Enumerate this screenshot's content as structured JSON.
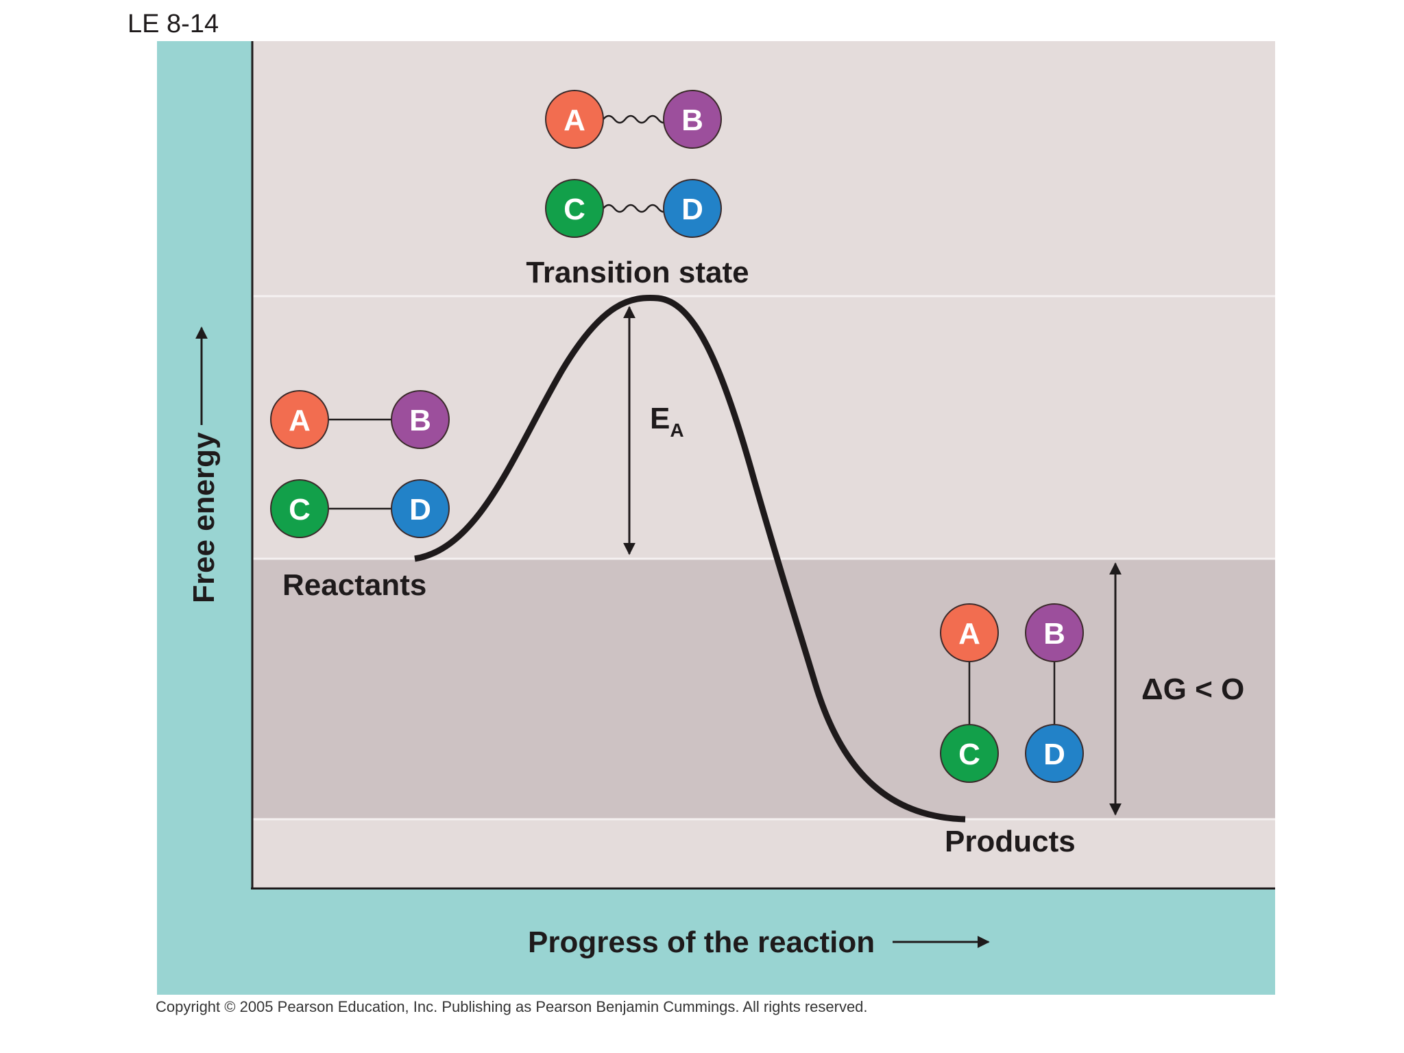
{
  "figure": {
    "label": "LE 8-14",
    "y_axis_label": "Free energy",
    "x_axis_label": "Progress of the reaction",
    "copyright": "Copyright © 2005 Pearson Education, Inc. Publishing as Pearson Benjamin Cummings. All rights reserved."
  },
  "labels": {
    "transition_state": "Transition state",
    "reactants": "Reactants",
    "products": "Products",
    "activation_energy": "E",
    "activation_energy_sub": "A",
    "delta_g": "ΔG < O"
  },
  "atoms": {
    "a": "A",
    "b": "B",
    "c": "C",
    "d": "D"
  },
  "colors": {
    "teal_border": "#99d4d2",
    "upper_band": "#e4dcdb",
    "lower_band": "#cdc2c3",
    "atom_a": "#f26d50",
    "atom_b": "#9c4f9c",
    "atom_c": "#12a04a",
    "atom_d": "#2282c8",
    "curve": "#1e1a1b"
  }
}
